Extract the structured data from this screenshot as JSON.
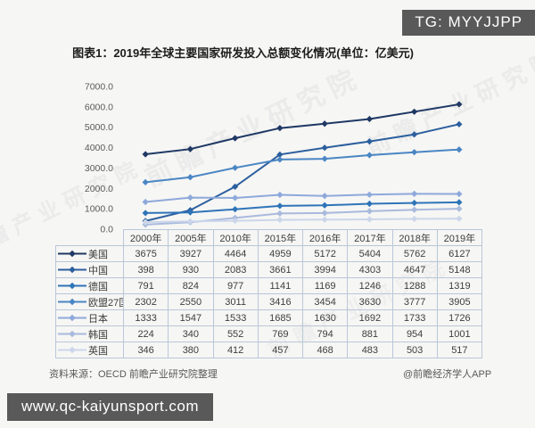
{
  "badges": {
    "top_right": "TG: MYYJJPP",
    "bottom_left": "www.qc-kaiyunsport.com"
  },
  "title": "图表1：2019年全球主要国家研发投入总额变化情况(单位：亿美元)",
  "watermark_text": "前瞻产业研究院",
  "footer": {
    "source": "资料来源：OECD 前瞻产业研究院整理",
    "credit": "@前瞻经济学人APP"
  },
  "chart_data": {
    "type": "line",
    "title": "图表1：2019年全球主要国家研发投入总额变化情况(单位：亿美元)",
    "unit": "亿美元",
    "categories": [
      "2000年",
      "2005年",
      "2010年",
      "2015年",
      "2016年",
      "2017年",
      "2018年",
      "2019年"
    ],
    "series": [
      {
        "name": "美国",
        "color": "#1f3864",
        "values": [
          3675,
          3927,
          4464,
          4959,
          5172,
          5404,
          5762,
          6127
        ]
      },
      {
        "name": "中国",
        "color": "#2c5f9e",
        "values": [
          398,
          930,
          2083,
          3661,
          3994,
          4303,
          4647,
          5148
        ]
      },
      {
        "name": "德国",
        "color": "#2e74b8",
        "values": [
          791,
          824,
          977,
          1141,
          1169,
          1246,
          1288,
          1319
        ]
      },
      {
        "name": "欧盟27国",
        "color": "#4a86c4",
        "values": [
          2302,
          2550,
          3011,
          3416,
          3454,
          3630,
          3777,
          3905
        ]
      },
      {
        "name": "日本",
        "color": "#8ea9db",
        "values": [
          1333,
          1547,
          1533,
          1685,
          1630,
          1692,
          1733,
          1726
        ]
      },
      {
        "name": "韩国",
        "color": "#a9badd",
        "values": [
          224,
          340,
          552,
          769,
          794,
          881,
          954,
          1001
        ]
      },
      {
        "name": "英国",
        "color": "#ccd6ea",
        "values": [
          346,
          380,
          412,
          457,
          468,
          483,
          503,
          517
        ]
      }
    ],
    "ylim": [
      0,
      7000
    ],
    "ytick_step": 1000,
    "ytick_labels": [
      "0.0",
      "1000.0",
      "2000.0",
      "3000.0",
      "4000.0",
      "5000.0",
      "6000.0",
      "7000.0"
    ],
    "grid": false,
    "marker": "diamond",
    "legend_position": "table-left"
  }
}
